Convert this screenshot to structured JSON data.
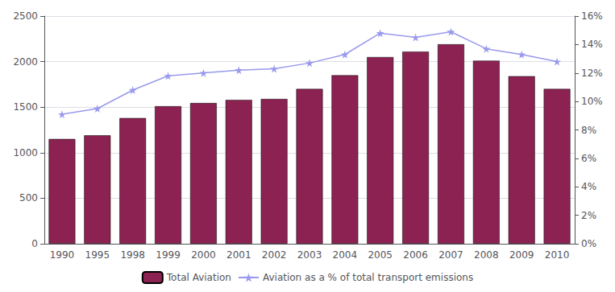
{
  "chart_data": {
    "type": "bar",
    "categories": [
      "1990",
      "1995",
      "1998",
      "1999",
      "2000",
      "2001",
      "2002",
      "2003",
      "2004",
      "2005",
      "2006",
      "2007",
      "2008",
      "2009",
      "2010"
    ],
    "series": [
      {
        "name": "Total Aviation",
        "type": "bar",
        "color": "#8B2252",
        "values": [
          1150,
          1190,
          1380,
          1510,
          1545,
          1580,
          1590,
          1700,
          1850,
          2050,
          2110,
          2190,
          2010,
          1840,
          1700
        ]
      },
      {
        "name": "Aviation as a % of total transport emissions",
        "type": "line",
        "axis": "y2",
        "color": "#9999ee",
        "marker": "star",
        "values": [
          0.091,
          0.095,
          0.108,
          0.118,
          0.12,
          0.122,
          0.123,
          0.127,
          0.133,
          0.148,
          0.145,
          0.149,
          0.137,
          0.133,
          0.128
        ]
      }
    ],
    "ylim": [
      0,
      2500
    ],
    "yticks": [
      0,
      500,
      1000,
      1500,
      2000,
      2500
    ],
    "y2lim": [
      0,
      0.16
    ],
    "y2ticks": [
      {
        "value": 0.0,
        "label": "0%"
      },
      {
        "value": 0.02,
        "label": "2%"
      },
      {
        "value": 0.04,
        "label": "4%"
      },
      {
        "value": 0.06,
        "label": "6%"
      },
      {
        "value": 0.08,
        "label": "8%"
      },
      {
        "value": 0.1,
        "label": "10%"
      },
      {
        "value": 0.12,
        "label": "12%"
      },
      {
        "value": 0.14,
        "label": "14%"
      },
      {
        "value": 0.16,
        "label": "16%"
      }
    ],
    "grid": true,
    "legend": "bottom"
  }
}
